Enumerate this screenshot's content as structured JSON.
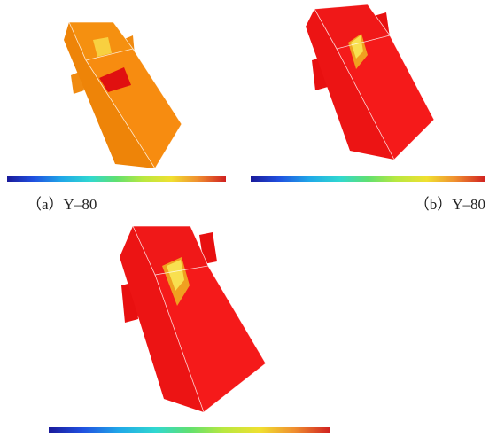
{
  "figure": {
    "captions": [
      "（a）Y–80",
      "（b）Y–80"
    ]
  }
}
